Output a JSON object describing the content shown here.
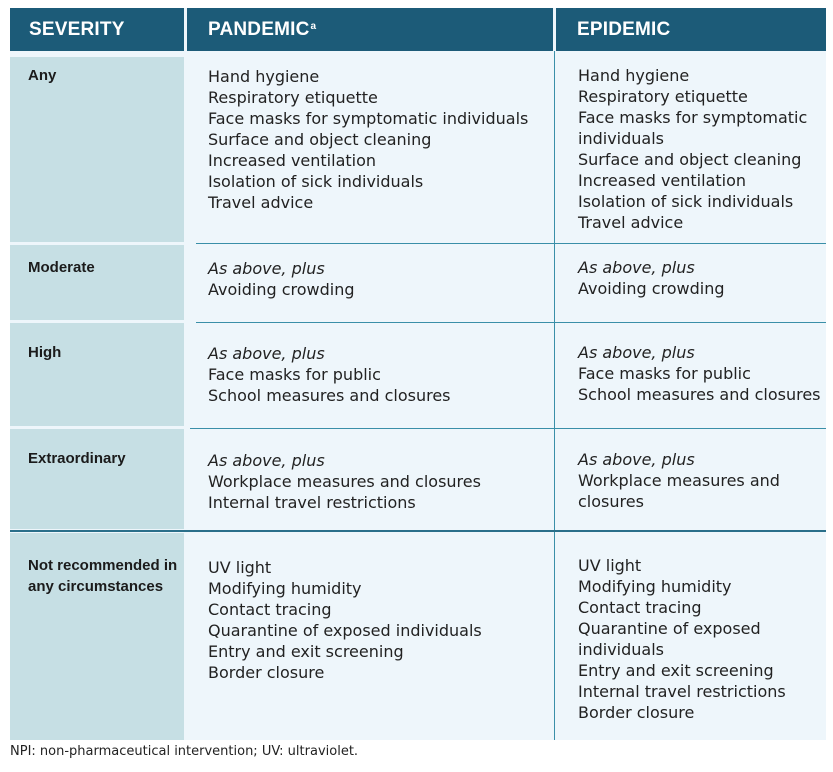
{
  "header": {
    "severity": "SEVERITY",
    "pandemic": "PANDEMIC",
    "pandemic_sup": "a",
    "epidemic": "EPIDEMIC"
  },
  "rows": [
    {
      "severity": "Any",
      "pandemic": [
        "Hand hygiene",
        "Respiratory etiquette",
        "Face masks for symptomatic individuals",
        "Surface and object cleaning",
        "Increased ventilation",
        "Isolation of sick individuals",
        "Travel advice"
      ],
      "epidemic": [
        "Hand hygiene",
        "Respiratory etiquette",
        "Face masks for symptomatic individuals",
        "Surface and object cleaning",
        "Increased ventilation",
        "Isolation of sick individuals",
        "Travel advice"
      ]
    },
    {
      "severity": "Moderate",
      "intro": "As above, plus",
      "pandemic": [
        "Avoiding crowding"
      ],
      "epidemic": [
        "Avoiding crowding"
      ]
    },
    {
      "severity": "High",
      "intro": "As above, plus",
      "pandemic": [
        "Face masks for public",
        "School measures and closures"
      ],
      "epidemic": [
        "Face masks for public",
        "School measures and closures"
      ]
    },
    {
      "severity": "Extraordinary",
      "intro": "As above, plus",
      "pandemic": [
        "Workplace measures and closures",
        "Internal travel restrictions"
      ],
      "epidemic": [
        "Workplace measures and closures"
      ]
    },
    {
      "severity_line1": "Not recommended in",
      "severity_line2": "any circumstances",
      "pandemic": [
        "UV light",
        "Modifying humidity",
        "Contact tracing",
        "Quarantine of exposed individuals",
        "Entry and exit screening",
        "Border closure"
      ],
      "epidemic": [
        "UV light",
        "Modifying humidity",
        "Contact tracing",
        "Quarantine of exposed individuals",
        "Entry and exit screening",
        "Internal travel restrictions",
        "Border closure"
      ]
    }
  ],
  "footnote": "NPI: non-pharmaceutical intervention; UV: ultraviolet."
}
